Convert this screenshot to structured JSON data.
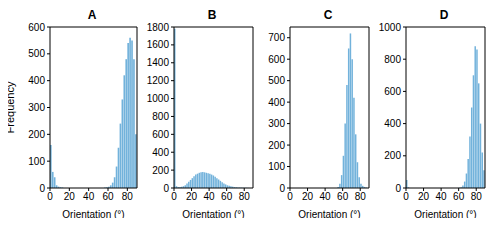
{
  "chart_data": [
    {
      "type": "histogram",
      "title": "A",
      "x_label": "Orientation (°)",
      "y_label": "Frequency",
      "color": "#72b2db",
      "bins": [
        0,
        2,
        4,
        6,
        8,
        10,
        12,
        14,
        16,
        18,
        20,
        22,
        24,
        26,
        28,
        30,
        32,
        34,
        36,
        38,
        40,
        42,
        44,
        46,
        48,
        50,
        52,
        54,
        56,
        58,
        60,
        62,
        64,
        66,
        68,
        70,
        72,
        74,
        76,
        78,
        80,
        82,
        84,
        86,
        88,
        90
      ],
      "counts": [
        160,
        60,
        40,
        10,
        5,
        3,
        2,
        0,
        0,
        0,
        0,
        0,
        0,
        0,
        0,
        0,
        0,
        0,
        0,
        0,
        0,
        0,
        0,
        0,
        0,
        0,
        0,
        0,
        2,
        3,
        5,
        10,
        20,
        40,
        80,
        150,
        240,
        330,
        420,
        480,
        540,
        560,
        550,
        480,
        200
      ],
      "xlim": [
        0,
        90
      ],
      "xticks": [
        0,
        20,
        40,
        60,
        80
      ],
      "ylim": [
        0,
        600
      ],
      "yticks": [
        0,
        100,
        200,
        300,
        400,
        500,
        600
      ]
    },
    {
      "type": "histogram",
      "title": "B",
      "x_label": "Orientation (°)",
      "color": "#72b2db",
      "bins": [
        0,
        2,
        4,
        6,
        8,
        10,
        12,
        14,
        16,
        18,
        20,
        22,
        24,
        26,
        28,
        30,
        32,
        34,
        36,
        38,
        40,
        42,
        44,
        46,
        48,
        50,
        52,
        54,
        56,
        58,
        60,
        62,
        64,
        66,
        68,
        70,
        72,
        74,
        76,
        78,
        80,
        82,
        84,
        86,
        88,
        90
      ],
      "counts": [
        1780,
        20,
        10,
        10,
        15,
        20,
        30,
        50,
        70,
        90,
        110,
        130,
        150,
        160,
        170,
        175,
        180,
        175,
        170,
        165,
        160,
        150,
        140,
        125,
        110,
        95,
        80,
        65,
        50,
        40,
        30,
        25,
        20,
        15,
        10,
        8,
        6,
        5,
        4,
        3,
        2,
        2,
        1,
        1,
        1
      ],
      "xlim": [
        0,
        90
      ],
      "xticks": [
        0,
        20,
        40,
        60,
        80
      ],
      "ylim": [
        0,
        1800
      ],
      "yticks": [
        0,
        200,
        400,
        600,
        800,
        1000,
        1200,
        1400,
        1600,
        1800
      ]
    },
    {
      "type": "histogram",
      "title": "C",
      "x_label": "Orientation (°)",
      "color": "#72b2db",
      "bins": [
        0,
        2,
        4,
        6,
        8,
        10,
        12,
        14,
        16,
        18,
        20,
        22,
        24,
        26,
        28,
        30,
        32,
        34,
        36,
        38,
        40,
        42,
        44,
        46,
        48,
        50,
        52,
        54,
        56,
        58,
        60,
        62,
        64,
        66,
        68,
        70,
        72,
        74,
        76,
        78,
        80,
        82,
        84,
        86,
        88,
        90
      ],
      "counts": [
        0,
        0,
        0,
        0,
        0,
        0,
        0,
        0,
        0,
        0,
        0,
        0,
        0,
        0,
        0,
        0,
        0,
        0,
        0,
        0,
        0,
        0,
        0,
        0,
        0,
        0,
        0,
        5,
        20,
        60,
        150,
        300,
        480,
        650,
        720,
        600,
        420,
        250,
        120,
        50,
        20,
        10,
        5,
        2,
        0
      ],
      "xlim": [
        0,
        90
      ],
      "xticks": [
        0,
        20,
        40,
        60,
        80
      ],
      "ylim": [
        0,
        750
      ],
      "yticks": [
        0,
        100,
        200,
        300,
        400,
        500,
        600,
        700
      ]
    },
    {
      "type": "histogram",
      "title": "D",
      "x_label": "Orientation (°)",
      "color": "#72b2db",
      "bins": [
        0,
        2,
        4,
        6,
        8,
        10,
        12,
        14,
        16,
        18,
        20,
        22,
        24,
        26,
        28,
        30,
        32,
        34,
        36,
        38,
        40,
        42,
        44,
        46,
        48,
        50,
        52,
        54,
        56,
        58,
        60,
        62,
        64,
        66,
        68,
        70,
        72,
        74,
        76,
        78,
        80,
        82,
        84,
        86,
        88,
        90
      ],
      "counts": [
        50,
        5,
        0,
        0,
        0,
        0,
        0,
        0,
        0,
        0,
        0,
        0,
        0,
        0,
        0,
        0,
        0,
        0,
        0,
        0,
        0,
        0,
        0,
        0,
        0,
        0,
        0,
        0,
        0,
        0,
        2,
        5,
        15,
        40,
        90,
        180,
        320,
        500,
        700,
        880,
        860,
        650,
        400,
        220,
        110
      ],
      "xlim": [
        0,
        90
      ],
      "xticks": [
        0,
        20,
        40,
        60,
        80
      ],
      "ylim": [
        0,
        1000
      ],
      "yticks": [
        0,
        200,
        400,
        600,
        800,
        1000
      ]
    }
  ]
}
